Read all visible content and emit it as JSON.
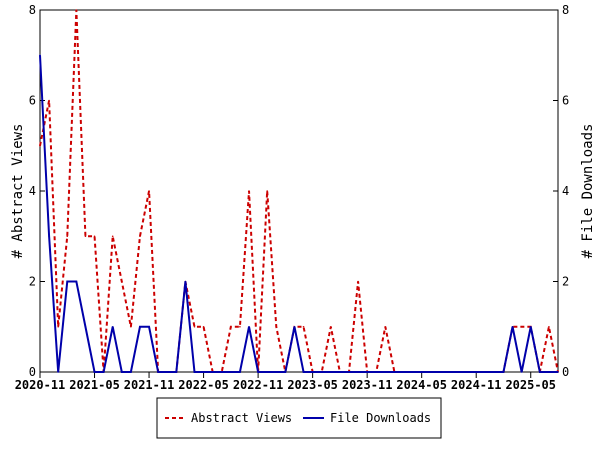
{
  "chart_data": {
    "type": "line",
    "title": "",
    "xlabel": "",
    "ylabel_left": "# Abstract Views",
    "ylabel_right": "# File Downloads",
    "ylim_left": [
      0,
      8
    ],
    "ylim_right": [
      0,
      8
    ],
    "yticks_left": [
      "0",
      "2",
      "4",
      "6",
      "8"
    ],
    "yticks_right": [
      "0",
      "2",
      "4",
      "6",
      "8"
    ],
    "x_start": "2020-11",
    "x_end": "2025-08",
    "xticks": [
      "2020-11",
      "2021-05",
      "2021-11",
      "2022-05",
      "2022-11",
      "2023-05",
      "2023-11",
      "2024-05",
      "2024-11",
      "2025-05"
    ],
    "grid": false,
    "legend_placement": "bottom",
    "colors": {
      "abstract_views": "#cc0000",
      "file_downloads": "#0000aa"
    },
    "series": [
      {
        "name": "Abstract Views",
        "axis": "left",
        "style": "dashed",
        "color": "#cc0000",
        "x": [
          "2020-11",
          "2020-12",
          "2021-01",
          "2021-02",
          "2021-03",
          "2021-04",
          "2021-05",
          "2021-06",
          "2021-07",
          "2021-08",
          "2021-09",
          "2021-10",
          "2021-11",
          "2021-12",
          "2022-01",
          "2022-02",
          "2022-03",
          "2022-04",
          "2022-05",
          "2022-06",
          "2022-07",
          "2022-08",
          "2022-09",
          "2022-10",
          "2022-11",
          "2022-12",
          "2023-01",
          "2023-02",
          "2023-03",
          "2023-04",
          "2023-05",
          "2023-06",
          "2023-07",
          "2023-08",
          "2023-09",
          "2023-10",
          "2023-11",
          "2023-12",
          "2024-01",
          "2024-02",
          "2024-03",
          "2024-04",
          "2024-05",
          "2024-06",
          "2024-07",
          "2024-08",
          "2024-09",
          "2024-10",
          "2024-11",
          "2024-12",
          "2025-01",
          "2025-02",
          "2025-03",
          "2025-04",
          "2025-05",
          "2025-06",
          "2025-07",
          "2025-08"
        ],
        "values": [
          5,
          6,
          1,
          3,
          8,
          3,
          3,
          0,
          3,
          2,
          1,
          3,
          4,
          0,
          0,
          0,
          2,
          1,
          1,
          0,
          0,
          1,
          1,
          4,
          0,
          4,
          1,
          0,
          1,
          1,
          0,
          0,
          1,
          0,
          0,
          2,
          0,
          0,
          1,
          0,
          0,
          0,
          0,
          0,
          0,
          0,
          0,
          0,
          0,
          0,
          0,
          0,
          1,
          1,
          1,
          0,
          1,
          0
        ]
      },
      {
        "name": "File Downloads",
        "axis": "right",
        "style": "solid",
        "color": "#0000aa",
        "x": [
          "2020-11",
          "2020-12",
          "2021-01",
          "2021-02",
          "2021-03",
          "2021-04",
          "2021-05",
          "2021-06",
          "2021-07",
          "2021-08",
          "2021-09",
          "2021-10",
          "2021-11",
          "2021-12",
          "2022-01",
          "2022-02",
          "2022-03",
          "2022-04",
          "2022-05",
          "2022-06",
          "2022-07",
          "2022-08",
          "2022-09",
          "2022-10",
          "2022-11",
          "2022-12",
          "2023-01",
          "2023-02",
          "2023-03",
          "2023-04",
          "2023-05",
          "2023-06",
          "2023-07",
          "2023-08",
          "2023-09",
          "2023-10",
          "2023-11",
          "2023-12",
          "2024-01",
          "2024-02",
          "2024-03",
          "2024-04",
          "2024-05",
          "2024-06",
          "2024-07",
          "2024-08",
          "2024-09",
          "2024-10",
          "2024-11",
          "2024-12",
          "2025-01",
          "2025-02",
          "2025-03",
          "2025-04",
          "2025-05",
          "2025-06",
          "2025-07",
          "2025-08"
        ],
        "values": [
          7,
          3,
          0,
          2,
          2,
          1,
          0,
          0,
          1,
          0,
          0,
          1,
          1,
          0,
          0,
          0,
          2,
          0,
          0,
          0,
          0,
          0,
          0,
          1,
          0,
          0,
          0,
          0,
          1,
          0,
          0,
          0,
          0,
          0,
          0,
          0,
          0,
          0,
          0,
          0,
          0,
          0,
          0,
          0,
          0,
          0,
          0,
          0,
          0,
          0,
          0,
          0,
          1,
          0,
          1,
          0,
          0,
          0
        ]
      }
    ]
  }
}
